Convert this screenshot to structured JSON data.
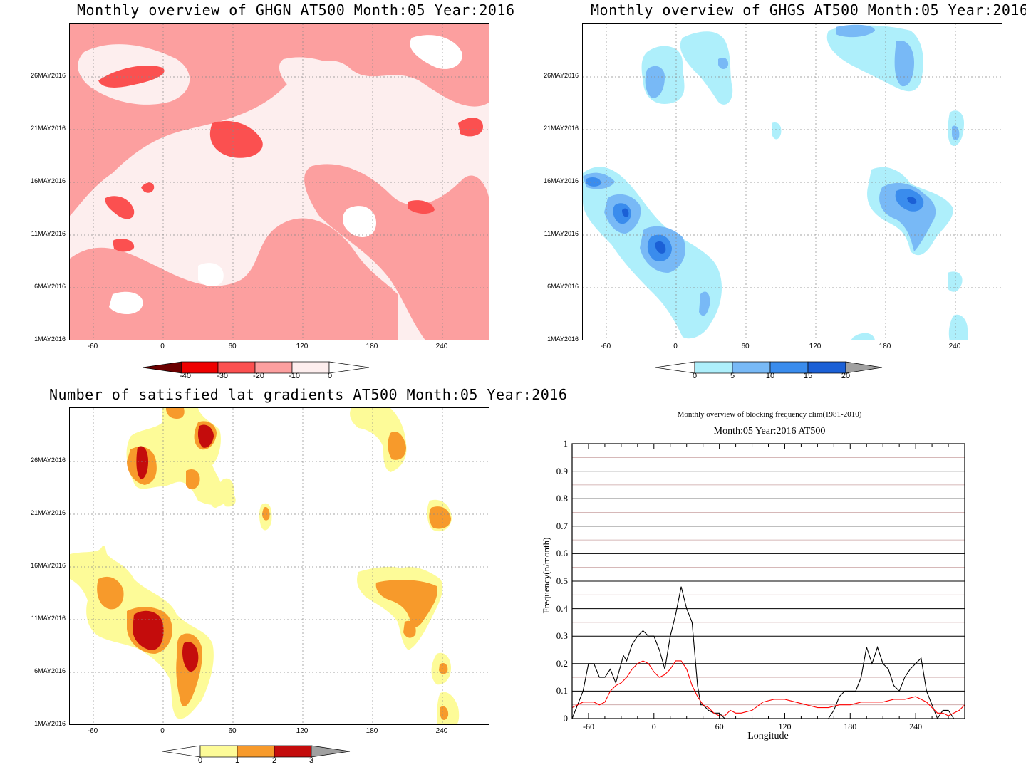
{
  "panels": {
    "ghgn": {
      "title": "Monthly overview of GHGN AT500 Month:05 Year:2016",
      "colorbar_labels": [
        "-40",
        "-30",
        "-20",
        "-10",
        "0"
      ],
      "colors": {
        "c1": "#fdeeee",
        "c2": "#fc9f9f",
        "c3": "#fb5050",
        "bg": "#ffffff"
      }
    },
    "ghgs": {
      "title": "Monthly overview of GHGS AT500 Month:05 Year:2016",
      "colorbar_labels": [
        "0",
        "5",
        "10",
        "15",
        "20"
      ],
      "colors": {
        "c1": "#aeeffb",
        "c2": "#78b9f6",
        "c3": "#3a8ced",
        "c4": "#1b60d6"
      }
    },
    "nlat": {
      "title": "Number of satisfied lat gradients AT500 Month:05 Year:2016",
      "colorbar_labels": [
        "0",
        "1",
        "2",
        "3"
      ],
      "colors": {
        "c1": "#fdfb98",
        "c2": "#f79a2b",
        "c3": "#c40c0c"
      }
    }
  },
  "date_ticks": [
    "26MAY2016",
    "21MAY2016",
    "16MAY2016",
    "11MAY2016",
    "6MAY2016",
    "1MAY2016"
  ],
  "lon_ticks": [
    "-60",
    "0",
    "60",
    "120",
    "180",
    "240"
  ],
  "freq": {
    "title1": "Monthly overview of blocking frequency clim(1981-2010)",
    "title2": "Month:05 Year:2016  AT500",
    "ylabel": "Frequency(n/month)",
    "xlabel": "Longitude"
  },
  "chart_data": [
    {
      "type": "heatmap",
      "title": "Monthly overview of GHGN AT500 Month:05 Year:2016",
      "x_ticks": [
        -60,
        0,
        60,
        120,
        180,
        240
      ],
      "y_ticks": [
        "1MAY2016",
        "6MAY2016",
        "11MAY2016",
        "16MAY2016",
        "21MAY2016",
        "26MAY2016"
      ],
      "levels": [
        -40,
        -30,
        -20,
        -10,
        0
      ]
    },
    {
      "type": "heatmap",
      "title": "Monthly overview of GHGS AT500 Month:05 Year:2016",
      "x_ticks": [
        -60,
        0,
        60,
        120,
        180,
        240
      ],
      "y_ticks": [
        "1MAY2016",
        "6MAY2016",
        "11MAY2016",
        "16MAY2016",
        "21MAY2016",
        "26MAY2016"
      ],
      "levels": [
        0,
        5,
        10,
        15,
        20
      ]
    },
    {
      "type": "heatmap",
      "title": "Number of satisfied lat gradients AT500 Month:05 Year:2016",
      "x_ticks": [
        -60,
        0,
        60,
        120,
        180,
        240
      ],
      "y_ticks": [
        "1MAY2016",
        "6MAY2016",
        "11MAY2016",
        "16MAY2016",
        "21MAY2016",
        "26MAY2016"
      ],
      "levels": [
        0,
        1,
        2,
        3
      ]
    },
    {
      "type": "line",
      "title": "Monthly overview of blocking frequency clim(1981-2010)",
      "subtitle": "Month:05 Year:2016  AT500",
      "xlabel": "Longitude",
      "ylabel": "Frequency(n/month)",
      "xlim": [
        -75,
        285
      ],
      "ylim": [
        0,
        1
      ],
      "x_ticks": [
        -60,
        0,
        60,
        120,
        180,
        240
      ],
      "y_ticks": [
        0,
        0.1,
        0.2,
        0.3,
        0.4,
        0.5,
        0.6,
        0.7,
        0.8,
        0.9,
        1
      ],
      "series": [
        {
          "color": "#000000",
          "x": [
            -75,
            -70,
            -65,
            -60,
            -55,
            -50,
            -45,
            -40,
            -35,
            -30,
            -28,
            -25,
            -20,
            -15,
            -10,
            -5,
            0,
            5,
            10,
            15,
            20,
            25,
            30,
            35,
            40,
            43,
            45,
            50,
            55,
            60,
            65,
            70,
            80,
            90,
            100,
            110,
            120,
            130,
            140,
            150,
            160,
            165,
            170,
            175,
            180,
            185,
            190,
            195,
            200,
            205,
            210,
            215,
            220,
            225,
            230,
            235,
            240,
            245,
            250,
            255,
            260,
            265,
            270,
            275,
            280,
            285
          ],
          "y": [
            0,
            0.05,
            0.1,
            0.2,
            0.2,
            0.15,
            0.15,
            0.18,
            0.13,
            0.2,
            0.23,
            0.21,
            0.27,
            0.3,
            0.32,
            0.3,
            0.3,
            0.25,
            0.18,
            0.3,
            0.38,
            0.48,
            0.4,
            0.35,
            0.12,
            0.05,
            0.05,
            0.03,
            0.02,
            0.02,
            0,
            0,
            0,
            0,
            0,
            0,
            0,
            0,
            0,
            0,
            0,
            0.03,
            0.08,
            0.1,
            0.1,
            0.1,
            0.15,
            0.26,
            0.2,
            0.26,
            0.2,
            0.18,
            0.12,
            0.1,
            0.15,
            0.18,
            0.2,
            0.22,
            0.1,
            0.05,
            0,
            0.03,
            0.03,
            0,
            0,
            0
          ]
        },
        {
          "color": "#ff0000",
          "x": [
            -75,
            -70,
            -65,
            -60,
            -55,
            -50,
            -45,
            -40,
            -35,
            -30,
            -25,
            -20,
            -15,
            -10,
            -5,
            0,
            5,
            10,
            15,
            20,
            25,
            30,
            35,
            40,
            45,
            50,
            55,
            60,
            65,
            70,
            75,
            80,
            90,
            100,
            110,
            120,
            130,
            140,
            150,
            160,
            170,
            180,
            190,
            200,
            210,
            220,
            230,
            240,
            250,
            255,
            260,
            265,
            270,
            275,
            280,
            285
          ],
          "y": [
            0.04,
            0.05,
            0.06,
            0.06,
            0.06,
            0.05,
            0.06,
            0.1,
            0.12,
            0.13,
            0.15,
            0.18,
            0.2,
            0.21,
            0.2,
            0.17,
            0.15,
            0.16,
            0.18,
            0.21,
            0.21,
            0.18,
            0.12,
            0.08,
            0.05,
            0.04,
            0.02,
            0.01,
            0.01,
            0.03,
            0.02,
            0.02,
            0.03,
            0.06,
            0.07,
            0.07,
            0.06,
            0.05,
            0.04,
            0.04,
            0.05,
            0.05,
            0.06,
            0.06,
            0.06,
            0.07,
            0.07,
            0.08,
            0.06,
            0.04,
            0.02,
            0.02,
            0.01,
            0.02,
            0.03,
            0.05
          ]
        }
      ]
    }
  ]
}
